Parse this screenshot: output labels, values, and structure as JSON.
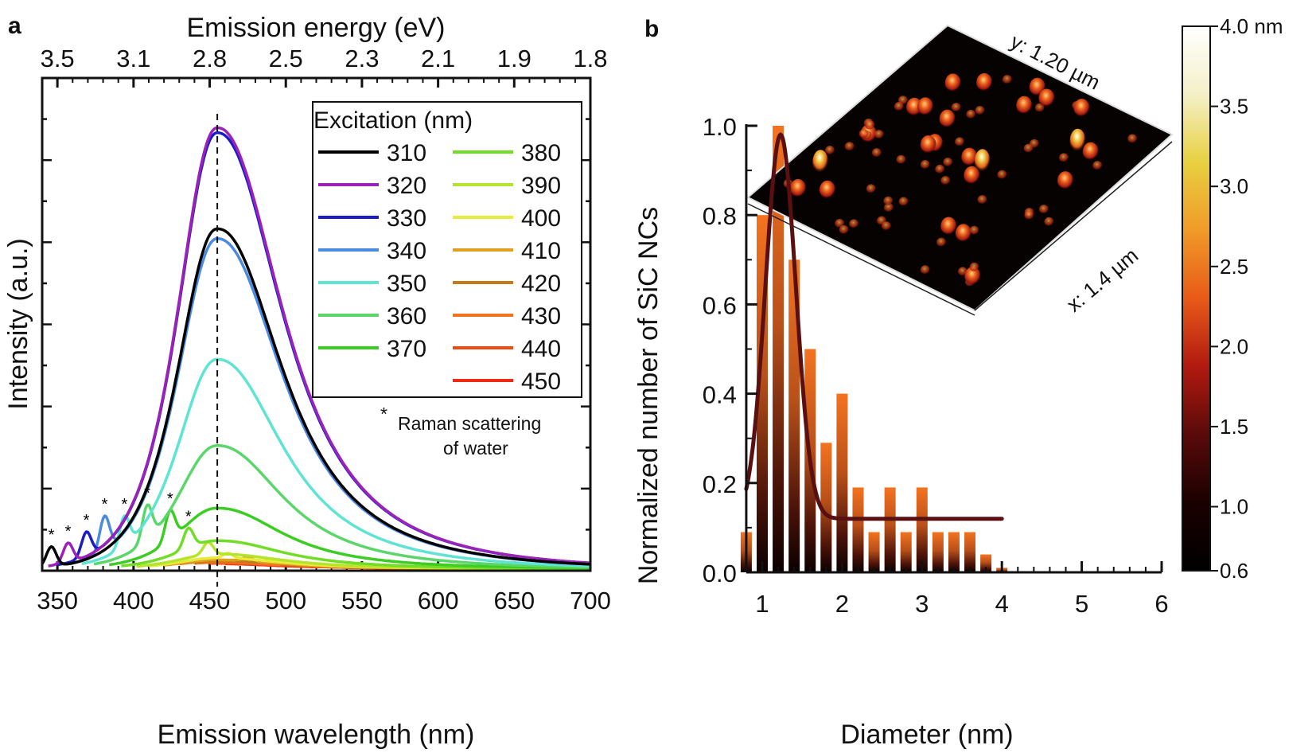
{
  "chart_data": [
    {
      "panel": "a",
      "type": "line",
      "xlabel": "Emission wavelength (nm)",
      "ylabel": "Intensity (a.u.)",
      "top_xlabel": "Emission energy (eV)",
      "xlim": [
        340,
        700
      ],
      "ylim": [
        0,
        1
      ],
      "xticks": [
        350,
        400,
        450,
        500,
        550,
        600,
        650,
        700
      ],
      "top_xticks": [
        {
          "label": "3.5",
          "wavelength": 350
        },
        {
          "label": "3.1",
          "wavelength": 400
        },
        {
          "label": "2.8",
          "wavelength": 450
        },
        {
          "label": "2.5",
          "wavelength": 500
        },
        {
          "label": "2.3",
          "wavelength": 550
        },
        {
          "label": "2.1",
          "wavelength": 600
        },
        {
          "label": "1.9",
          "wavelength": 650
        },
        {
          "label": "1.8",
          "wavelength": 700
        }
      ],
      "reference_line_wavelength": 455,
      "legend_title": "Excitation (nm)",
      "legend_placement": "top-right",
      "annotation_marker": "*",
      "annotation": [
        "Raman scattering",
        "of water"
      ],
      "peak_wavelength": 455,
      "series": [
        {
          "name": "310",
          "color": "#000000",
          "peak": 0.69,
          "start": 340,
          "raman": 346,
          "raman_height": 0.04
        },
        {
          "name": "320",
          "color": "#9a22b8",
          "peak": 0.895,
          "start": 344,
          "raman": 357,
          "raman_height": 0.04
        },
        {
          "name": "330",
          "color": "#1c1cc4",
          "peak": 0.885,
          "start": 350,
          "raman": 369,
          "raman_height": 0.05
        },
        {
          "name": "340",
          "color": "#4a8ae0",
          "peak": 0.67,
          "start": 358,
          "raman": 381,
          "raman_height": 0.07
        },
        {
          "name": "350",
          "color": "#5fe3d2",
          "peak": 0.425,
          "start": 366,
          "raman": 394,
          "raman_height": 0.06
        },
        {
          "name": "360",
          "color": "#5ad66a",
          "peak": 0.25,
          "start": 374,
          "raman": 409,
          "raman_height": 0.07
        },
        {
          "name": "370",
          "color": "#3ccd22",
          "peak": 0.123,
          "start": 384,
          "raman": 424,
          "raman_height": 0.06
        },
        {
          "name": "380",
          "color": "#72dd26",
          "peak": 0.057,
          "start": 392,
          "raman": 436,
          "raman_height": 0.04
        },
        {
          "name": "390",
          "color": "#b5e52a",
          "peak": 0.03,
          "start": 402,
          "raman": 449,
          "raman_height": 0.025
        },
        {
          "name": "400",
          "color": "#e6ec3c",
          "peak": 0.022,
          "start": 410,
          "raman": 462,
          "raman_height": 0.01
        },
        {
          "name": "410",
          "color": "#e0a01e",
          "peak": 0.018,
          "start": 420,
          "raman": 475,
          "raman_height": 0.008
        },
        {
          "name": "420",
          "color": "#c27a1c",
          "peak": 0.016,
          "start": 430,
          "raman": 489,
          "raman_height": 0.006
        },
        {
          "name": "430",
          "color": "#f2701e",
          "peak": 0.013,
          "start": 440,
          "raman": 502,
          "raman_height": 0.005
        },
        {
          "name": "440",
          "color": "#f04a12",
          "peak": 0.011,
          "start": 450,
          "raman": 516,
          "raman_height": 0.005
        },
        {
          "name": "450",
          "color": "#ee2a12",
          "peak": 0.01,
          "start": 460,
          "raman": 530,
          "raman_height": 0.004
        }
      ]
    },
    {
      "panel": "b",
      "type": "bar",
      "xlabel": "Diameter (nm)",
      "ylabel": "Normalized number of SiC NCs",
      "xlim": [
        0.8,
        6
      ],
      "ylim": [
        0,
        1.0
      ],
      "xticks": [
        1,
        2,
        3,
        4,
        5,
        6
      ],
      "yticks": [
        "0.0",
        "0.2",
        "0.4",
        "0.6",
        "0.8",
        "1.0"
      ],
      "bar_color": "#f47320",
      "bars": {
        "x": [
          0.8,
          1.0,
          1.2,
          1.4,
          1.6,
          1.8,
          2.0,
          2.2,
          2.4,
          2.6,
          2.8,
          3.0,
          3.2,
          3.4,
          3.6,
          3.8,
          4.0
        ],
        "values": [
          0.09,
          0.8,
          1.0,
          0.7,
          0.5,
          0.29,
          0.4,
          0.19,
          0.09,
          0.19,
          0.09,
          0.19,
          0.09,
          0.09,
          0.09,
          0.04,
          0.01
        ]
      },
      "fit": {
        "type": "gaussian",
        "color": "#5a1010",
        "center": 1.23,
        "amplitude": 0.86,
        "sigma": 0.19,
        "baseline": 0.12,
        "range": [
          0.8,
          4.0
        ]
      },
      "inset": {
        "type": "afm-3d-surface",
        "y_label": "y: 1.20 µm",
        "x_label": "x: 1.4 µm"
      },
      "colorbar": {
        "range": [
          0.6,
          4.0
        ],
        "ticks": [
          "4.0 nm",
          "3.5",
          "3.0",
          "2.5",
          "2.0",
          "1.5",
          "1.0",
          "0.6"
        ],
        "tick_values": [
          4.0,
          3.5,
          3.0,
          2.5,
          2.0,
          1.5,
          1.0,
          0.6
        ],
        "colormap": [
          "#000000",
          "#1a0000",
          "#5a0a0a",
          "#b01a10",
          "#e85a18",
          "#f09a28",
          "#e8d040",
          "#f4f0c8",
          "#ffffff"
        ]
      }
    }
  ],
  "panel_labels": [
    "a",
    "b"
  ]
}
